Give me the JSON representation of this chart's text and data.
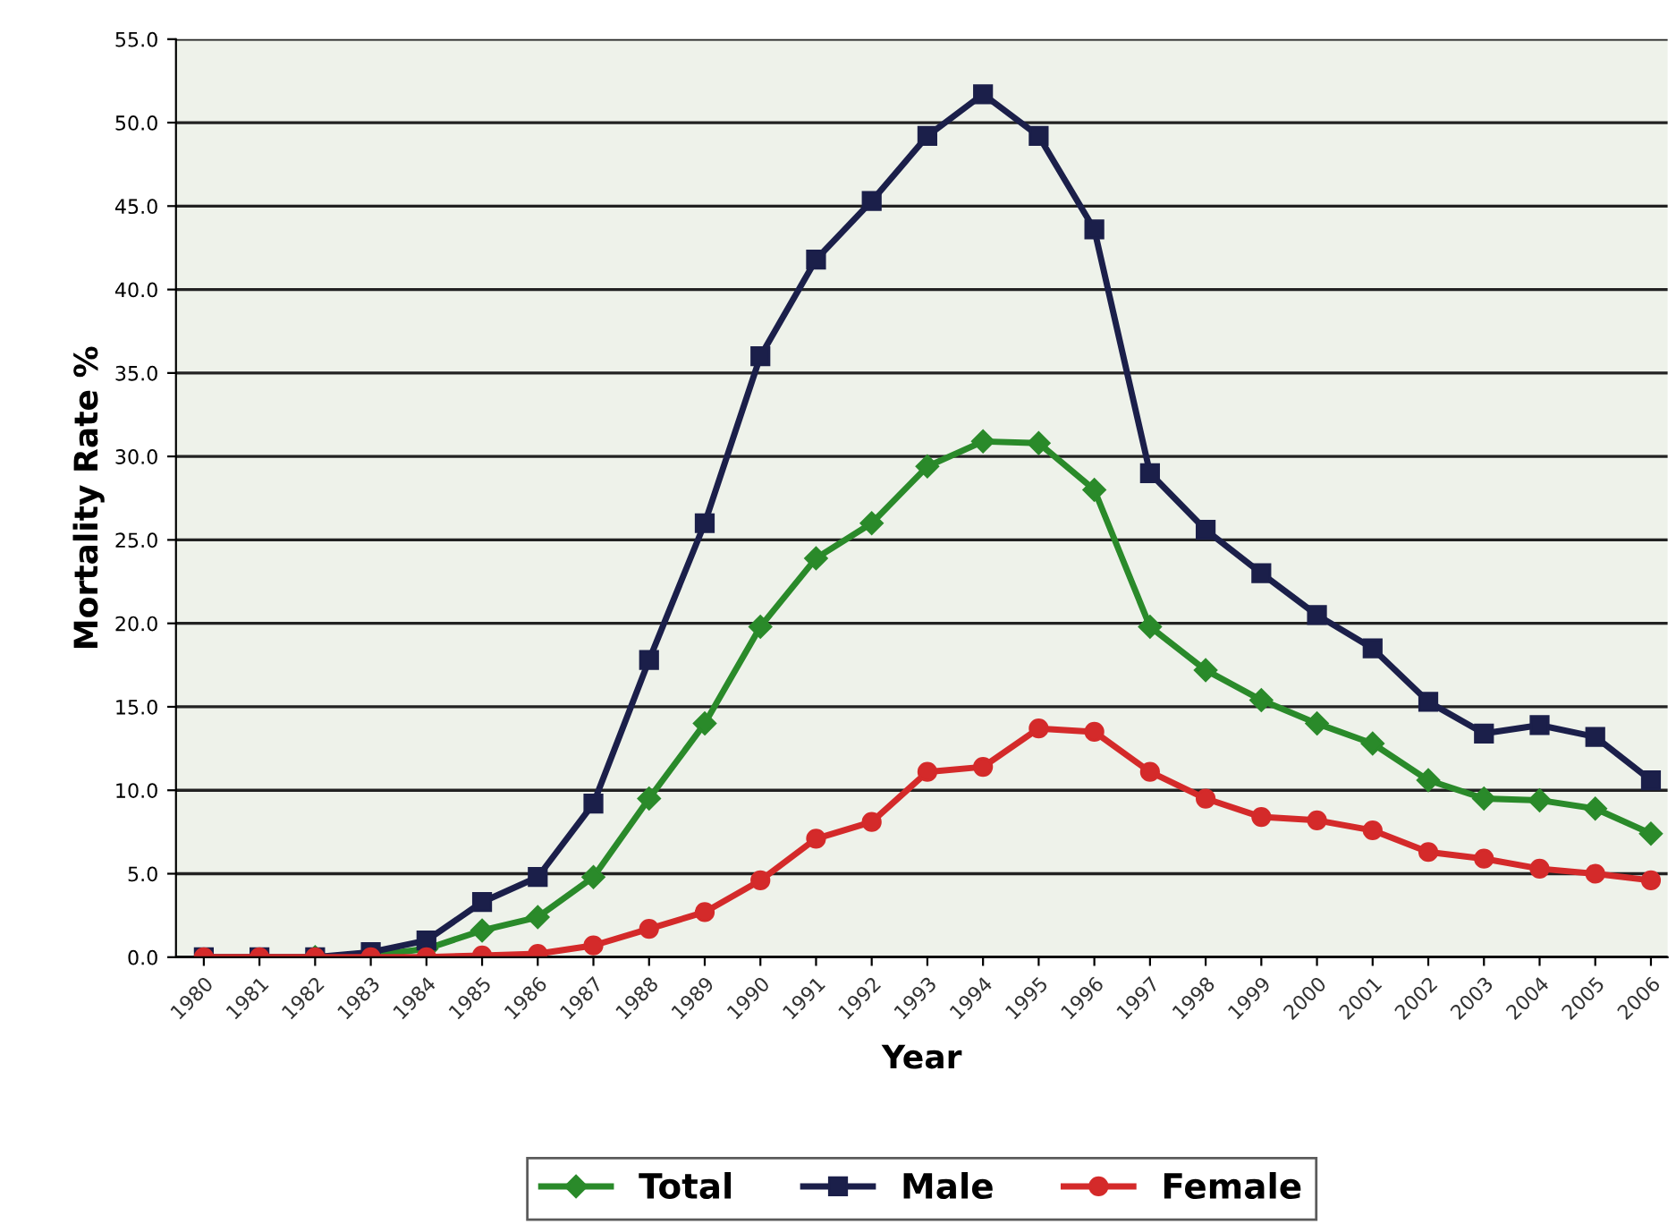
{
  "chart_data": {
    "type": "line",
    "xlabel": "Year",
    "ylabel": "Mortality Rate %",
    "categories": [
      "1980",
      "1981",
      "1982",
      "1983",
      "1984",
      "1985",
      "1986",
      "1987",
      "1988",
      "1989",
      "1990",
      "1991",
      "1992",
      "1993",
      "1994",
      "1995",
      "1996",
      "1997",
      "1998",
      "1999",
      "2000",
      "2001",
      "2002",
      "2003",
      "2004",
      "2005",
      "2006"
    ],
    "series": [
      {
        "name": "Total",
        "color": "#2a8a2a",
        "marker": "diamond",
        "values": [
          null,
          null,
          0,
          0.1,
          0.5,
          1.6,
          2.4,
          4.8,
          9.5,
          14.0,
          19.8,
          23.9,
          26.0,
          29.4,
          30.9,
          30.8,
          28.0,
          19.8,
          17.2,
          15.4,
          14.0,
          12.8,
          10.6,
          9.5,
          9.4,
          8.9,
          7.4
        ]
      },
      {
        "name": "Male",
        "color": "#1b1f4a",
        "marker": "square",
        "values": [
          0,
          0,
          0,
          0.3,
          1.0,
          3.3,
          4.8,
          9.2,
          17.8,
          26.0,
          36.0,
          41.8,
          45.3,
          49.2,
          51.7,
          49.2,
          43.6,
          29.0,
          25.6,
          23.0,
          20.5,
          18.5,
          15.3,
          13.4,
          13.9,
          13.2,
          10.6
        ]
      },
      {
        "name": "Female",
        "color": "#d42a2a",
        "marker": "circle",
        "values": [
          0,
          0,
          0,
          0,
          0,
          0.1,
          0.2,
          0.7,
          1.7,
          2.7,
          4.6,
          7.1,
          8.1,
          11.1,
          11.4,
          13.7,
          13.5,
          11.1,
          9.5,
          8.4,
          8.2,
          7.6,
          6.3,
          5.9,
          5.3,
          5.0,
          4.6
        ]
      }
    ],
    "ylim": [
      0,
      55
    ],
    "yticks": [
      {
        "value": 0,
        "label": "0.0"
      },
      {
        "value": 5,
        "label": "5.0"
      },
      {
        "value": 10,
        "label": "10.0"
      },
      {
        "value": 15,
        "label": "15.0"
      },
      {
        "value": 20,
        "label": "20.0"
      },
      {
        "value": 25,
        "label": "25.0"
      },
      {
        "value": 30,
        "label": "30.0"
      },
      {
        "value": 35,
        "label": "35.0"
      },
      {
        "value": 40,
        "label": "40.0"
      },
      {
        "value": 45,
        "label": "45.0"
      },
      {
        "value": 50,
        "label": "50.0"
      },
      {
        "value": 55,
        "label": "55.0"
      }
    ],
    "grid": "y",
    "legend": "bottom",
    "line_style": "solid"
  }
}
